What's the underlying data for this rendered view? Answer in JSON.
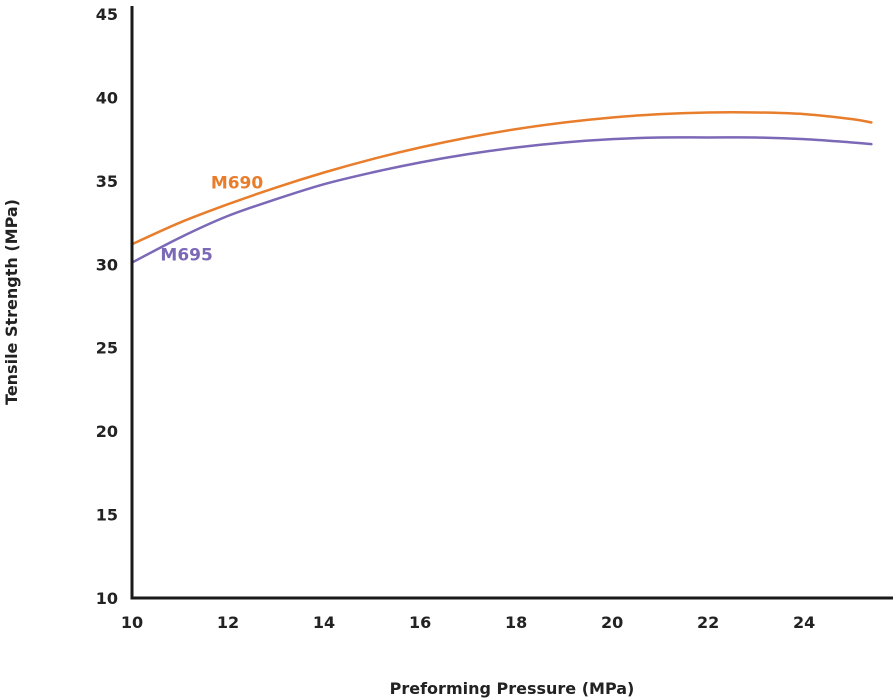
{
  "chart_data": {
    "type": "line",
    "title": "",
    "xlabel": "Preforming Pressure (MPa)",
    "ylabel": "Tensile Strength (MPa)",
    "xlim": [
      10,
      25.5
    ],
    "ylim": [
      10,
      45
    ],
    "xticks": [
      "10",
      "12",
      "14",
      "16",
      "18",
      "20",
      "22",
      "24"
    ],
    "yticks": [
      "10",
      "15",
      "20",
      "25",
      "30",
      "35",
      "40",
      "45"
    ],
    "grid": false,
    "series": [
      {
        "name": "M690",
        "color": "#e87d2c",
        "x": [
          10,
          11,
          12,
          13,
          14,
          15,
          16,
          17,
          18,
          19,
          20,
          21,
          22,
          23,
          24,
          25,
          25.4
        ],
        "y": [
          31.2,
          32.5,
          33.6,
          34.6,
          35.5,
          36.3,
          37.0,
          37.6,
          38.1,
          38.5,
          38.8,
          39.0,
          39.1,
          39.1,
          39.0,
          38.7,
          38.5
        ]
      },
      {
        "name": "M695",
        "color": "#7b68b6",
        "x": [
          10,
          11,
          12,
          13,
          14,
          15,
          16,
          17,
          18,
          19,
          20,
          21,
          22,
          23,
          24,
          25,
          25.4
        ],
        "y": [
          30.1,
          31.6,
          32.9,
          33.9,
          34.8,
          35.5,
          36.1,
          36.6,
          37.0,
          37.3,
          37.5,
          37.6,
          37.6,
          37.6,
          37.5,
          37.3,
          37.2
        ]
      }
    ]
  }
}
